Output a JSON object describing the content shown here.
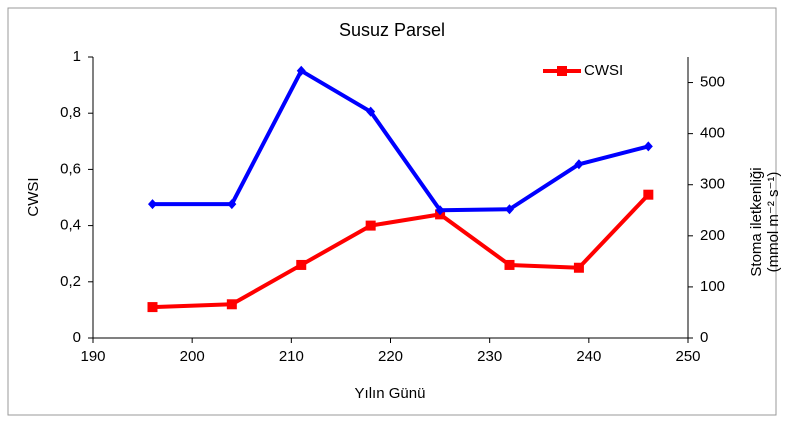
{
  "chart_data": {
    "type": "line",
    "title": "Susuz Parsel",
    "xlabel": "Yılın Günü",
    "ylabel": "CWSI",
    "y2label": [
      "Stoma iletkenliği",
      "(mmol m⁻² s⁻¹)"
    ],
    "x": [
      196,
      204,
      211,
      218,
      225,
      232,
      239,
      246
    ],
    "series": [
      {
        "name": "CWSI",
        "color": "#ff0000",
        "marker": "square",
        "values": [
          0.11,
          0.12,
          0.26,
          0.4,
          0.44,
          0.26,
          0.25,
          0.51
        ]
      },
      {
        "color": "#0000ff",
        "marker": "diamond",
        "axis": "y2",
        "values": [
          262,
          262,
          523,
          443,
          250,
          252,
          340,
          375
        ]
      }
    ],
    "xlim": [
      190,
      250
    ],
    "xticks": [
      190,
      200,
      210,
      220,
      230,
      240,
      250
    ],
    "ylim": [
      0,
      1
    ],
    "yticks": [
      0,
      {
        "value": 0.2,
        "label": "0,2"
      },
      {
        "value": 0.4,
        "label": "0,4"
      },
      {
        "value": 0.6,
        "label": "0,6"
      },
      {
        "value": 0.8,
        "label": "0,8"
      },
      1
    ],
    "y2lim": [
      0,
      550
    ],
    "y2ticks": [
      0,
      100,
      200,
      300,
      400,
      500
    ],
    "grid": false,
    "legend": "upper right"
  }
}
